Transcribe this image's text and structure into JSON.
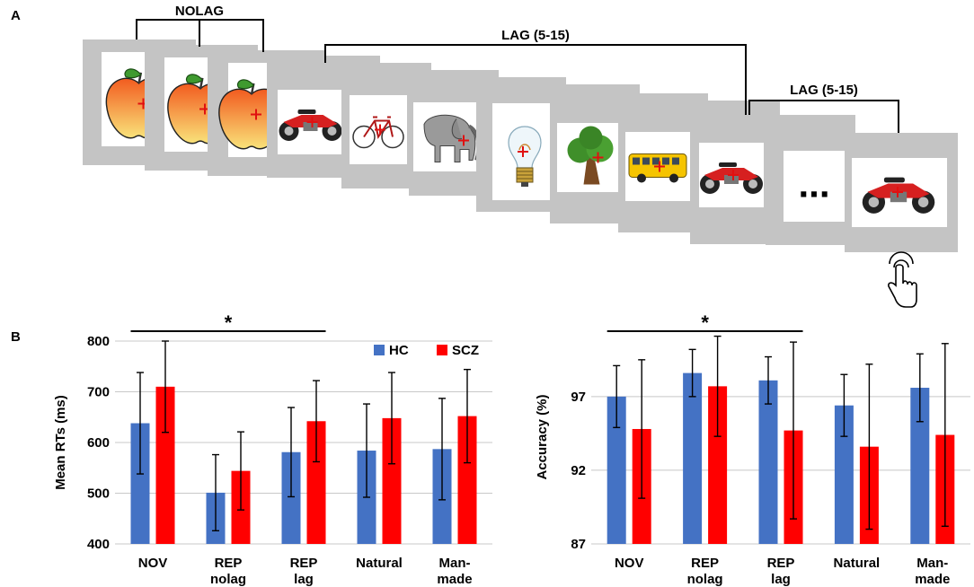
{
  "panel_a": {
    "label": "A",
    "bracket_nolag": "NOLAG",
    "bracket_lag_1": "LAG (5-15)",
    "bracket_lag_2": "LAG (5-15)",
    "ellipsis": "...",
    "stimuli": [
      "apple",
      "apple",
      "apple",
      "motorcycle",
      "bicycle",
      "elephant",
      "light-bulb",
      "tree",
      "bus",
      "motorcycle",
      "ellipsis",
      "motorcycle"
    ],
    "response_icon": "pointing-hand-icon"
  },
  "panel_b": {
    "label": "B"
  },
  "colors": {
    "hc": "#4472c4",
    "scz": "#ff0000",
    "grid": "#c8c8c8"
  },
  "chart_data": [
    {
      "type": "bar",
      "title": "",
      "ylabel": "Mean RTs (ms)",
      "xlabel": "",
      "ylim": [
        400,
        800
      ],
      "yticks": [
        400,
        500,
        600,
        700,
        800
      ],
      "grid": true,
      "legend": "top-right",
      "categories": [
        [
          "NOV"
        ],
        [
          "REP",
          "nolag"
        ],
        [
          "REP",
          "lag"
        ],
        [
          "Natural"
        ],
        [
          "Man-",
          "made"
        ]
      ],
      "series": [
        {
          "name": "HC",
          "values": [
            638,
            501,
            581,
            584,
            587
          ],
          "err": [
            100,
            75,
            88,
            92,
            100
          ]
        },
        {
          "name": "SCZ",
          "values": [
            710,
            544,
            642,
            648,
            652
          ],
          "err": [
            90,
            77,
            80,
            90,
            92
          ]
        }
      ],
      "significance": {
        "label": "*",
        "from": 0,
        "to": 2
      }
    },
    {
      "type": "bar",
      "title": "",
      "ylabel": "Accuracy (%)",
      "xlabel": "",
      "ylim": [
        87,
        101.5
      ],
      "yticks": [
        87,
        92,
        97
      ],
      "grid": true,
      "legend": "",
      "categories": [
        [
          "NOV"
        ],
        [
          "REP",
          "nolag"
        ],
        [
          "REP",
          "lag"
        ],
        [
          "Natural"
        ],
        [
          "Man-",
          "made"
        ]
      ],
      "series": [
        {
          "name": "HC",
          "values": [
            97.0,
            98.6,
            98.1,
            96.4,
            97.6
          ],
          "err": [
            2.1,
            1.6,
            1.6,
            2.1,
            2.3
          ]
        },
        {
          "name": "SCZ",
          "values": [
            94.8,
            97.7,
            94.7,
            93.6,
            94.4
          ],
          "err": [
            4.7,
            3.4,
            6.0,
            5.6,
            6.2
          ]
        }
      ],
      "significance": {
        "label": "*",
        "from": 0,
        "to": 2
      }
    }
  ]
}
